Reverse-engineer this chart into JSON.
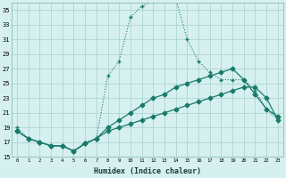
{
  "xlabel": "Humidex (Indice chaleur)",
  "bg_color": "#d6f0f0",
  "line_color": "#1a7a6a",
  "grid_color": "#a8cece",
  "xlim": [
    -0.5,
    23.5
  ],
  "ylim": [
    15,
    36
  ],
  "yticks": [
    15,
    17,
    19,
    21,
    23,
    25,
    27,
    29,
    31,
    33,
    35
  ],
  "xticks": [
    0,
    1,
    2,
    3,
    4,
    5,
    6,
    7,
    8,
    9,
    10,
    11,
    12,
    13,
    14,
    15,
    16,
    17,
    18,
    19,
    20,
    21,
    22,
    23
  ],
  "curve1_x": [
    0,
    1,
    2,
    3,
    4,
    5,
    6,
    7,
    8,
    9,
    10,
    11,
    12,
    13,
    14,
    15,
    16,
    17,
    18,
    19,
    20,
    21,
    22,
    23
  ],
  "curve1_y": [
    19,
    17.5,
    17,
    16.5,
    16.5,
    15.8,
    17,
    17.5,
    26,
    28,
    34,
    35.5,
    36.2,
    36.5,
    36.5,
    31,
    28,
    26.5,
    25.5,
    25.5,
    25.5,
    24,
    21.5,
    20
  ],
  "curve2_x": [
    0,
    1,
    2,
    3,
    4,
    5,
    6,
    7,
    8,
    9,
    10,
    11,
    12,
    13,
    14,
    15,
    16,
    17,
    18,
    19,
    20,
    21,
    22,
    23
  ],
  "curve2_y": [
    18.5,
    17.5,
    17,
    16.5,
    16.5,
    15.8,
    16.8,
    17.5,
    19,
    20,
    21,
    22,
    23,
    23.5,
    24.5,
    25,
    25.5,
    26,
    26.5,
    27,
    25.5,
    23.5,
    21.5,
    20.5
  ],
  "curve3_x": [
    0,
    1,
    2,
    3,
    4,
    5,
    6,
    7,
    8,
    9,
    10,
    11,
    12,
    13,
    14,
    15,
    16,
    17,
    18,
    19,
    20,
    21,
    22,
    23
  ],
  "curve3_y": [
    18.5,
    17.5,
    17,
    16.5,
    16.5,
    15.8,
    16.8,
    17.5,
    18.5,
    19,
    19.5,
    20,
    20.5,
    21,
    21.5,
    22,
    22.5,
    23,
    23.5,
    24,
    24.5,
    24.5,
    23,
    20
  ]
}
